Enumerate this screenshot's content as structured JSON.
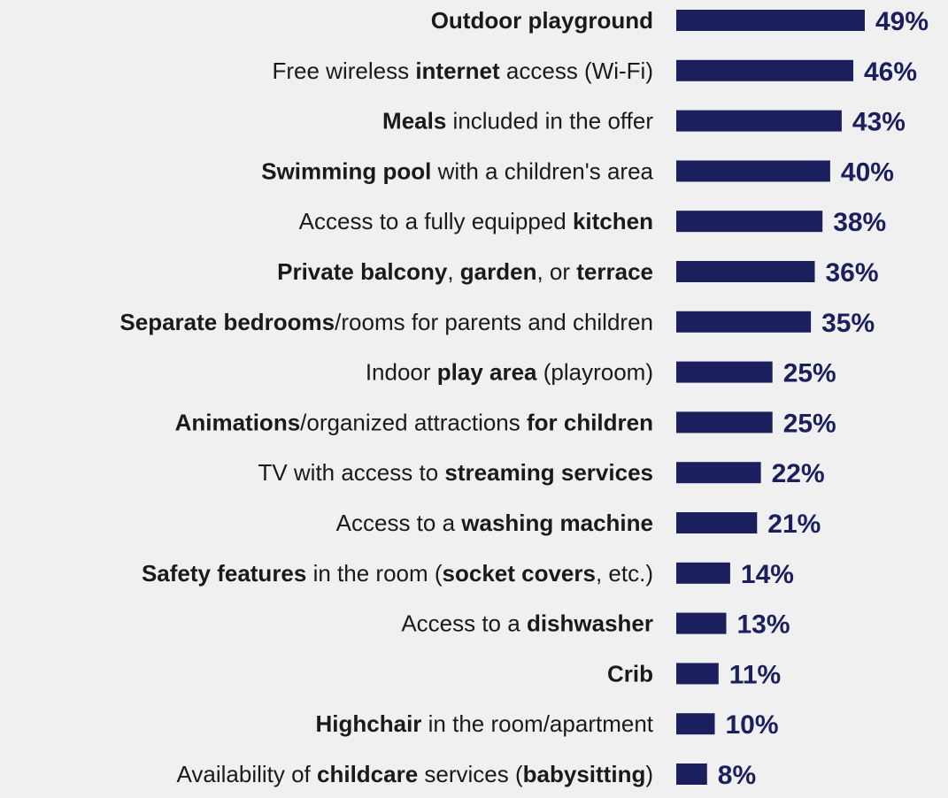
{
  "colors": {
    "bar": "#1b1f5e",
    "value_text": "#1b1f5e",
    "label_text": "#1a1a1a",
    "background": "#f0f0f0"
  },
  "chart_data": {
    "type": "bar",
    "orientation": "horizontal",
    "categories": [
      "Outdoor playground",
      "Free wireless internet access (Wi-Fi)",
      "Meals included in the offer",
      "Swimming pool with a children's area",
      "Access to a fully equipped kitchen",
      "Private balcony, garden, or terrace",
      "Separate bedrooms/rooms for parents and children",
      "Indoor play area (playroom)",
      "Animations/organized attractions for children",
      "TV with access to streaming services",
      "Access to a washing machine",
      "Safety features in the room (socket covers, etc.)",
      "Access to a dishwasher",
      "Crib",
      "Highchair in the room/apartment",
      "Availability of childcare services (babysitting)"
    ],
    "category_segments": [
      [
        {
          "t": "Outdoor playground",
          "b": true
        }
      ],
      [
        {
          "t": "Free wireless ",
          "b": false
        },
        {
          "t": "internet",
          "b": true
        },
        {
          "t": " access (Wi-Fi)",
          "b": false
        }
      ],
      [
        {
          "t": "Meals",
          "b": true
        },
        {
          "t": " included in the offer",
          "b": false
        }
      ],
      [
        {
          "t": "Swimming pool",
          "b": true
        },
        {
          "t": " with a children's area",
          "b": false
        }
      ],
      [
        {
          "t": "Access to a fully equipped ",
          "b": false
        },
        {
          "t": "kitchen",
          "b": true
        }
      ],
      [
        {
          "t": "Private balcony",
          "b": true
        },
        {
          "t": ", ",
          "b": false
        },
        {
          "t": "garden",
          "b": true
        },
        {
          "t": ", or ",
          "b": false
        },
        {
          "t": "terrace",
          "b": true
        }
      ],
      [
        {
          "t": "Separate bedrooms",
          "b": true
        },
        {
          "t": "/rooms for parents and children",
          "b": false
        }
      ],
      [
        {
          "t": "Indoor ",
          "b": false
        },
        {
          "t": "play area",
          "b": true
        },
        {
          "t": " (playroom)",
          "b": false
        }
      ],
      [
        {
          "t": "Animations",
          "b": true
        },
        {
          "t": "/organized attractions ",
          "b": false
        },
        {
          "t": "for children",
          "b": true
        }
      ],
      [
        {
          "t": "TV with access to ",
          "b": false
        },
        {
          "t": "streaming services",
          "b": true
        }
      ],
      [
        {
          "t": "Access to a ",
          "b": false
        },
        {
          "t": "washing machine",
          "b": true
        }
      ],
      [
        {
          "t": "Safety features",
          "b": true
        },
        {
          "t": " in the room (",
          "b": false
        },
        {
          "t": "socket covers",
          "b": true
        },
        {
          "t": ", etc.)",
          "b": false
        }
      ],
      [
        {
          "t": "Access to a ",
          "b": false
        },
        {
          "t": "dishwasher",
          "b": true
        }
      ],
      [
        {
          "t": "Crib",
          "b": true
        }
      ],
      [
        {
          "t": "Highchair",
          "b": true
        },
        {
          "t": " in the room/apartment",
          "b": false
        }
      ],
      [
        {
          "t": "Availability of ",
          "b": false
        },
        {
          "t": "childcare",
          "b": true
        },
        {
          "t": " services (",
          "b": false
        },
        {
          "t": "babysitting",
          "b": true
        },
        {
          "t": ")",
          "b": false
        }
      ]
    ],
    "values": [
      49,
      46,
      43,
      40,
      38,
      36,
      35,
      25,
      25,
      22,
      21,
      14,
      13,
      11,
      10,
      8
    ],
    "value_labels": [
      "49%",
      "46%",
      "43%",
      "40%",
      "38%",
      "36%",
      "35%",
      "25%",
      "25%",
      "22%",
      "21%",
      "14%",
      "13%",
      "11%",
      "10%",
      "8%"
    ],
    "xlim": [
      0,
      49
    ],
    "title": "",
    "xlabel": "",
    "ylabel": "",
    "grid": false,
    "legend": "none"
  }
}
